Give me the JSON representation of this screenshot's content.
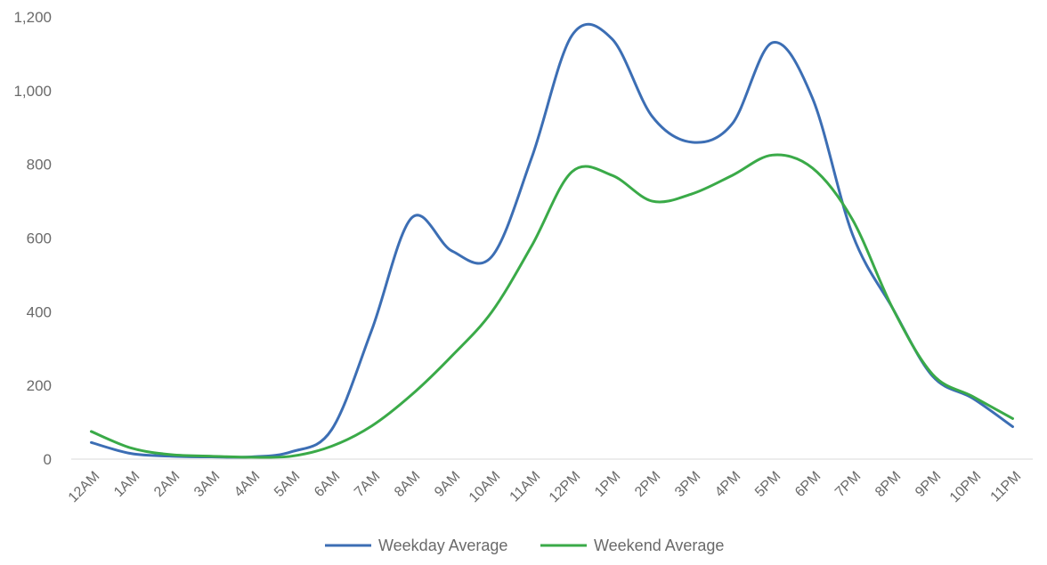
{
  "chart_data": {
    "type": "line",
    "smooth": true,
    "categories": [
      "12AM",
      "1AM",
      "2AM",
      "3AM",
      "4AM",
      "5AM",
      "6AM",
      "7AM",
      "8AM",
      "9AM",
      "10AM",
      "11AM",
      "12PM",
      "1PM",
      "2PM",
      "3PM",
      "4PM",
      "5PM",
      "6PM",
      "7PM",
      "8PM",
      "9PM",
      "10PM",
      "11PM"
    ],
    "series": [
      {
        "name": "Weekday Average",
        "color": "#3c6eb4",
        "values": [
          45,
          15,
          8,
          6,
          6,
          20,
          80,
          350,
          655,
          565,
          550,
          820,
          1150,
          1140,
          930,
          860,
          910,
          1130,
          980,
          610,
          410,
          225,
          165,
          88
        ]
      },
      {
        "name": "Weekend Average",
        "color": "#3aaa48",
        "values": [
          75,
          30,
          12,
          8,
          5,
          8,
          35,
          90,
          175,
          280,
          400,
          580,
          780,
          770,
          700,
          720,
          770,
          825,
          790,
          650,
          410,
          230,
          170,
          110
        ]
      }
    ],
    "title": "",
    "xlabel": "",
    "ylabel": "",
    "ylim": [
      0,
      1200
    ],
    "yticks": [
      "0",
      "200",
      "400",
      "600",
      "800",
      "1,000",
      "1,200"
    ],
    "ytick_values": [
      0,
      200,
      400,
      600,
      800,
      1000,
      1200
    ],
    "grid": false,
    "legend": "bottom-center"
  }
}
